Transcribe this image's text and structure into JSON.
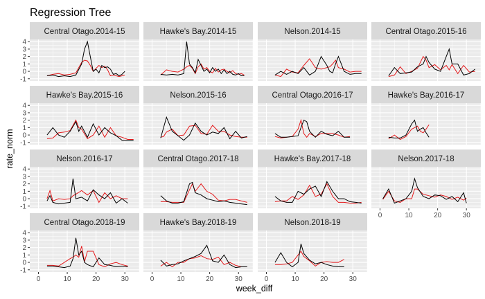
{
  "chart_data": {
    "type": "line",
    "title": "Regression Tree",
    "xlabel": "week_diff",
    "ylabel": "rate_norm",
    "xlim": [
      -3,
      35
    ],
    "ylim": [
      -1.3,
      4.3
    ],
    "x_ticks": [
      0,
      10,
      20,
      30
    ],
    "y_ticks": [
      -1,
      0,
      1,
      2,
      3,
      4
    ],
    "grid": true,
    "colors": {
      "actual": "#000000",
      "predicted": "#e41a1c",
      "panel_bg": "#ebebeb",
      "strip_bg": "#d9d9d9",
      "grid": "#ffffff"
    },
    "series_colors": [
      "#000000",
      "#e41a1c"
    ],
    "panels": [
      {
        "label": "Central Otago.2014-15",
        "x": [
          3,
          5,
          7,
          9,
          11,
          13,
          15,
          16,
          17,
          18,
          19,
          20,
          21,
          22,
          23,
          24,
          25,
          26,
          27,
          28,
          29,
          30
        ],
        "actual": [
          -0.6,
          -0.5,
          -0.7,
          -0.6,
          -0.7,
          -0.5,
          1.0,
          3.0,
          4.0,
          2.0,
          0.0,
          0.3,
          -0.2,
          0.8,
          0.5,
          0.6,
          0.3,
          -0.4,
          -0.3,
          -0.6,
          -0.4,
          0.0
        ],
        "predicted": [
          -0.6,
          -0.4,
          -0.3,
          -0.5,
          -0.4,
          -0.2,
          1.2,
          1.5,
          1.4,
          0.8,
          0.0,
          0.4,
          0.8,
          0.5,
          0.7,
          0.2,
          -0.6,
          -0.5,
          -0.6,
          -0.7,
          -0.6,
          -0.5
        ]
      },
      {
        "label": "Hawke's Bay.2014-15",
        "x": [
          3,
          5,
          7,
          9,
          11,
          12,
          13,
          14,
          15,
          16,
          17,
          18,
          19,
          20,
          21,
          22,
          23,
          24,
          25,
          26,
          27,
          28,
          29,
          30,
          31,
          32
        ],
        "actual": [
          -0.4,
          -0.5,
          -0.4,
          -0.5,
          -0.3,
          4.0,
          1.0,
          0.5,
          -0.2,
          1.6,
          0.8,
          0.0,
          0.3,
          -0.2,
          0.5,
          0.0,
          0.3,
          -0.3,
          0.2,
          -0.3,
          0.0,
          -0.4,
          -0.5,
          -0.3,
          -0.6,
          -0.6
        ],
        "predicted": [
          -0.5,
          0.2,
          0.0,
          -0.1,
          0.3,
          0.6,
          0.8,
          0.4,
          -0.3,
          0.6,
          1.0,
          0.3,
          0.5,
          0.0,
          -0.2,
          0.4,
          -0.1,
          0.2,
          0.3,
          0.0,
          -0.2,
          0.1,
          -0.3,
          -0.4,
          -0.3,
          -0.5
        ]
      },
      {
        "label": "Nelson.2014-15",
        "x": [
          3,
          5,
          7,
          9,
          11,
          13,
          15,
          17,
          19,
          21,
          22,
          23,
          24,
          25,
          27,
          29,
          31,
          33
        ],
        "actual": [
          -0.5,
          0.0,
          -0.4,
          0.0,
          -0.3,
          0.5,
          -0.5,
          0.0,
          2.0,
          0.8,
          0.0,
          -0.2,
          1.0,
          2.0,
          0.0,
          -0.4,
          -0.3,
          -0.3
        ],
        "predicted": [
          -0.5,
          -0.7,
          0.3,
          -0.1,
          -0.2,
          0.8,
          1.7,
          0.5,
          0.3,
          0.5,
          0.6,
          1.0,
          1.5,
          0.5,
          0.3,
          -0.1,
          0.0,
          0.0
        ]
      },
      {
        "label": "Central Otago.2015-16",
        "x": [
          3,
          5,
          7,
          9,
          11,
          13,
          15,
          16,
          17,
          19,
          21,
          23,
          24,
          25,
          27,
          29,
          31,
          33
        ],
        "actual": [
          -0.6,
          0.5,
          -0.3,
          -0.2,
          -0.1,
          0.6,
          1.0,
          2.0,
          1.2,
          0.3,
          0.0,
          2.0,
          3.0,
          1.0,
          1.0,
          -0.5,
          -0.3,
          0.3
        ],
        "predicted": [
          -0.7,
          -0.5,
          0.6,
          -0.3,
          0.0,
          0.4,
          2.0,
          1.5,
          0.5,
          0.9,
          0.2,
          0.8,
          0.2,
          0.9,
          -0.3,
          0.8,
          -0.1,
          0.0
        ]
      },
      {
        "label": "Hawke's Bay.2015-16",
        "x": [
          3,
          5,
          7,
          9,
          11,
          13,
          14,
          15,
          17,
          19,
          21,
          23,
          25,
          27,
          29,
          31,
          33
        ],
        "actual": [
          0.0,
          1.0,
          0.0,
          -0.3,
          0.5,
          1.8,
          0.5,
          1.2,
          -0.3,
          1.5,
          0.0,
          1.0,
          0.3,
          -0.1,
          -0.7,
          -0.7,
          -0.7
        ],
        "predicted": [
          -0.5,
          -0.4,
          0.3,
          0.4,
          0.6,
          2.0,
          1.0,
          0.8,
          -0.5,
          0.0,
          1.2,
          -0.3,
          1.0,
          -0.1,
          -0.3,
          -0.6,
          -0.6
        ]
      },
      {
        "label": "Nelson.2015-16",
        "x": [
          3,
          4,
          5,
          7,
          9,
          11,
          13,
          15,
          17,
          19,
          21,
          23,
          25,
          27,
          29,
          31,
          33
        ],
        "actual": [
          -0.4,
          1.0,
          2.4,
          0.5,
          -0.1,
          -0.7,
          0.0,
          1.6,
          0.5,
          0.0,
          0.4,
          0.2,
          1.0,
          -0.5,
          0.5,
          -0.4,
          -0.2
        ],
        "predicted": [
          -0.3,
          -0.2,
          0.4,
          0.8,
          -0.1,
          0.0,
          1.2,
          1.3,
          0.2,
          0.1,
          1.3,
          0.5,
          0.5,
          0.0,
          -0.2,
          -0.3,
          -0.3
        ]
      },
      {
        "label": "Central Otago.2016-17",
        "x": [
          3,
          5,
          7,
          9,
          11,
          12,
          13,
          14,
          15,
          17,
          19,
          21,
          23,
          25,
          27,
          29
        ],
        "actual": [
          0.2,
          -0.3,
          -0.3,
          -0.2,
          -0.1,
          1.0,
          2.0,
          1.8,
          0.5,
          -0.3,
          0.5,
          0.1,
          -0.1,
          0.5,
          -0.3,
          -0.3
        ],
        "predicted": [
          -0.2,
          -0.4,
          -0.3,
          -0.2,
          0.8,
          2.0,
          0.2,
          -0.3,
          0.2,
          -0.2,
          0.2,
          0.2,
          0.2,
          0.0,
          -0.3,
          -0.2
        ]
      },
      {
        "label": "Hawke's Bay.2016-17",
        "x": [
          3,
          5,
          7,
          9,
          11,
          12,
          13,
          14,
          15,
          16,
          17
        ],
        "actual": [
          -0.3,
          -0.4,
          -0.4,
          0.0,
          1.5,
          2.0,
          0.5,
          0.8,
          1.0,
          0.3,
          -0.3
        ],
        "predicted": [
          -0.5,
          0.0,
          -0.6,
          -0.2,
          0.8,
          1.0,
          1.2,
          0.5,
          0.3,
          0.8,
          1.4
        ]
      },
      {
        "label": "Nelson.2016-17",
        "x": [
          3,
          4,
          5,
          7,
          9,
          11,
          12,
          13,
          15,
          17,
          19,
          21,
          23,
          25,
          27,
          29,
          31
        ],
        "actual": [
          -0.3,
          0.4,
          -0.5,
          -0.7,
          -0.6,
          -0.5,
          2.7,
          0.0,
          0.2,
          -0.3,
          1.2,
          0.5,
          0.0,
          0.8,
          -0.6,
          0.0,
          -0.6
        ],
        "predicted": [
          0.0,
          1.1,
          -0.3,
          0.0,
          -0.1,
          0.0,
          0.4,
          0.6,
          1.1,
          0.5,
          1.1,
          -0.5,
          0.8,
          0.0,
          0.4,
          0.0,
          0.0
        ]
      },
      {
        "label": "Central Otago.2017-18",
        "x": [
          3,
          5,
          7,
          9,
          11,
          13,
          14,
          15,
          17,
          19,
          21,
          23,
          25,
          27,
          29,
          31,
          33
        ],
        "actual": [
          0.4,
          -0.3,
          -0.6,
          -0.6,
          -0.4,
          2.0,
          2.2,
          0.8,
          0.5,
          0.0,
          -0.2,
          -0.4,
          -0.3,
          -0.5,
          -0.6,
          -0.7,
          -0.8
        ],
        "predicted": [
          -0.4,
          -0.4,
          -0.5,
          -0.5,
          -0.5,
          1.2,
          2.0,
          1.0,
          2.0,
          1.0,
          0.6,
          -0.2,
          -0.3,
          -0.1,
          -0.1,
          -0.3,
          -0.5
        ]
      },
      {
        "label": "Hawke's Bay.2017-18",
        "x": [
          3,
          5,
          7,
          9,
          11,
          13,
          15,
          17,
          19,
          21,
          23,
          25,
          27,
          29,
          31,
          33
        ],
        "actual": [
          0.3,
          -0.3,
          -0.5,
          -0.5,
          1.0,
          0.6,
          1.3,
          1.7,
          0.3,
          2.3,
          1.0,
          0.0,
          0.0,
          -0.4,
          -0.5,
          -0.6
        ],
        "predicted": [
          -0.4,
          -0.3,
          -0.3,
          0.3,
          -0.1,
          0.5,
          1.8,
          0.3,
          0.6,
          2.0,
          0.3,
          -0.5,
          -0.5,
          -0.6,
          -0.6,
          -0.5
        ]
      },
      {
        "label": "Nelson.2017-18",
        "x": [
          1,
          3,
          5,
          7,
          9,
          11,
          12,
          13,
          15,
          17,
          19,
          21,
          23,
          25,
          27,
          29,
          30
        ],
        "actual": [
          0.0,
          1.3,
          -0.6,
          -0.3,
          0.0,
          1.0,
          2.7,
          1.5,
          0.3,
          0.0,
          0.5,
          0.4,
          -0.1,
          0.3,
          -0.4,
          0.8,
          -0.6
        ],
        "predicted": [
          -0.1,
          1.0,
          -0.3,
          -0.5,
          0.0,
          0.0,
          1.3,
          1.3,
          0.6,
          0.4,
          0.2,
          0.5,
          0.3,
          -0.1,
          0.2,
          -0.2,
          0.1
        ]
      },
      {
        "label": "Central Otago.2018-19",
        "x": [
          3,
          5,
          7,
          9,
          11,
          12,
          13,
          14,
          15,
          16,
          17,
          19,
          21,
          23,
          25,
          27,
          29,
          31
        ],
        "actual": [
          -0.5,
          -0.5,
          -0.6,
          -0.7,
          -0.5,
          0.5,
          3.3,
          1.0,
          1.5,
          0.0,
          -0.3,
          -0.6,
          0.6,
          -0.3,
          -0.4,
          -0.6,
          -0.5,
          -0.6
        ],
        "predicted": [
          -0.4,
          -0.4,
          -0.5,
          0.0,
          0.5,
          0.7,
          1.0,
          0.7,
          2.2,
          0.1,
          1.5,
          1.5,
          -0.3,
          -0.6,
          -0.2,
          0.0,
          -0.3,
          -0.5
        ]
      },
      {
        "label": "Hawke's Bay.2018-19",
        "x": [
          3,
          5,
          7,
          9,
          11,
          13,
          15,
          17,
          19,
          21,
          23,
          25,
          27,
          29,
          31,
          33
        ],
        "actual": [
          0.3,
          -0.5,
          -0.3,
          -0.2,
          0.2,
          0.5,
          0.8,
          1.2,
          2.3,
          0.2,
          0.0,
          1.0,
          -0.3,
          -0.7,
          -0.6,
          -0.6
        ],
        "predicted": [
          -0.5,
          0.0,
          -0.6,
          0.0,
          0.0,
          0.5,
          0.6,
          0.9,
          0.5,
          0.4,
          0.7,
          -0.3,
          0.0,
          -0.4,
          -0.6,
          -0.6
        ]
      },
      {
        "label": "Nelson.2018-19",
        "x": [
          3,
          5,
          7,
          9,
          11,
          12,
          13,
          15,
          17,
          19,
          21,
          23,
          25,
          27
        ],
        "actual": [
          0.0,
          1.3,
          0.0,
          -0.6,
          0.0,
          2.5,
          1.2,
          0.3,
          -0.2,
          0.0,
          -0.3,
          -0.5,
          -0.6,
          -0.6
        ],
        "predicted": [
          -0.3,
          -0.3,
          -0.2,
          0.0,
          1.0,
          1.5,
          0.8,
          0.2,
          -0.5,
          0.0,
          0.1,
          0.0,
          0.0,
          0.4
        ]
      }
    ]
  }
}
